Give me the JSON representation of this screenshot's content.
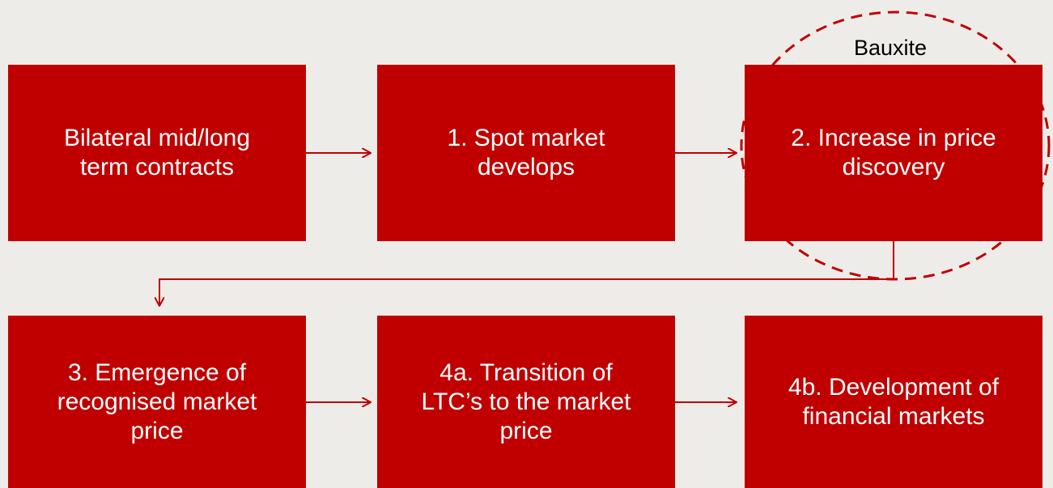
{
  "nodes": [
    {
      "lines": [
        "Bilateral mid/long",
        "term contracts"
      ]
    },
    {
      "lines": [
        "1. Spot market",
        "develops"
      ]
    },
    {
      "lines": [
        "2. Increase in price",
        "discovery"
      ]
    },
    {
      "lines": [
        "3. Emergence of",
        "recognised market",
        "price"
      ]
    },
    {
      "lines": [
        "4a. Transition of",
        "LTC’s to the market",
        "price"
      ]
    },
    {
      "lines": [
        "4b. Development of",
        "financial markets"
      ]
    }
  ],
  "annotation": "Bauxite"
}
